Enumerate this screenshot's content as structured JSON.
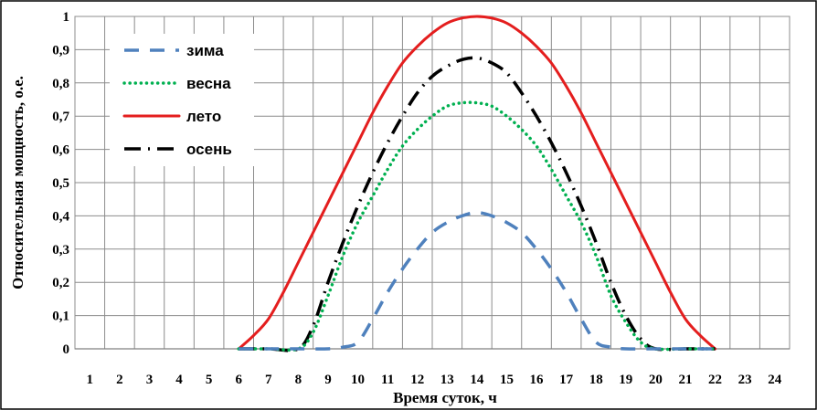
{
  "chart_data": {
    "type": "line",
    "title": "",
    "xlabel": "Время суток, ч",
    "ylabel": "Относительная  мощность, о.е.",
    "xlim": [
      0.5,
      24.5
    ],
    "ylim": [
      0,
      1
    ],
    "x_ticks": [
      "1",
      "2",
      "3",
      "4",
      "5",
      "6",
      "7",
      "8",
      "9",
      "10",
      "11",
      "12",
      "13",
      "14",
      "15",
      "16",
      "17",
      "18",
      "19",
      "20",
      "21",
      "22",
      "23",
      "24"
    ],
    "y_ticks": [
      "0",
      "0,1",
      "0,2",
      "0,3",
      "0,4",
      "0,5",
      "0,6",
      "0,7",
      "0,8",
      "0,9",
      "1"
    ],
    "grid": true,
    "legend_position": "top-left",
    "series": [
      {
        "name": "зима",
        "color": "#4F81BD",
        "style": "dashed",
        "x": [
          6,
          7,
          8,
          9,
          9.5,
          10,
          10.5,
          11,
          11.5,
          12,
          12.5,
          13,
          13.5,
          14,
          14.5,
          15,
          15.5,
          16,
          16.5,
          17,
          17.5,
          18,
          18.5,
          19,
          20,
          21,
          22
        ],
        "y": [
          0,
          0,
          0,
          0,
          0.005,
          0.02,
          0.09,
          0.17,
          0.24,
          0.3,
          0.35,
          0.38,
          0.4,
          0.41,
          0.4,
          0.38,
          0.35,
          0.3,
          0.24,
          0.17,
          0.09,
          0.02,
          0.005,
          0,
          0,
          0,
          0
        ]
      },
      {
        "name": "весна",
        "color": "#00B050",
        "style": "dotted",
        "x": [
          6,
          7,
          8,
          8.5,
          9,
          9.5,
          10,
          10.5,
          11,
          11.5,
          12,
          12.5,
          13,
          13.5,
          14,
          14.5,
          15,
          15.5,
          16,
          16.5,
          17,
          17.5,
          18,
          18.5,
          19,
          19.5,
          20,
          21,
          22
        ],
        "y": [
          0,
          0,
          0,
          0.05,
          0.16,
          0.28,
          0.38,
          0.46,
          0.54,
          0.61,
          0.66,
          0.7,
          0.73,
          0.74,
          0.74,
          0.73,
          0.7,
          0.66,
          0.61,
          0.54,
          0.46,
          0.38,
          0.28,
          0.16,
          0.08,
          0.02,
          0,
          0,
          0
        ]
      },
      {
        "name": "лето",
        "color": "#E41E1E",
        "style": "solid",
        "x": [
          6,
          6.5,
          7,
          7.5,
          8,
          8.5,
          9,
          9.5,
          10,
          10.5,
          11,
          11.5,
          12,
          12.5,
          13,
          13.5,
          14,
          14.5,
          15,
          15.5,
          16,
          16.5,
          17,
          17.5,
          18,
          18.5,
          19,
          19.5,
          20,
          20.5,
          21,
          21.5,
          22
        ],
        "y": [
          0,
          0.04,
          0.09,
          0.17,
          0.26,
          0.35,
          0.44,
          0.53,
          0.62,
          0.71,
          0.79,
          0.86,
          0.91,
          0.95,
          0.98,
          0.995,
          1.0,
          0.995,
          0.98,
          0.95,
          0.91,
          0.86,
          0.79,
          0.71,
          0.62,
          0.53,
          0.44,
          0.35,
          0.26,
          0.17,
          0.09,
          0.04,
          0
        ]
      },
      {
        "name": "осень",
        "color": "#000000",
        "style": "dashdot",
        "x": [
          6,
          7,
          8,
          8.5,
          9,
          9.5,
          10,
          10.5,
          11,
          11.5,
          12,
          12.5,
          13,
          13.5,
          14,
          14.5,
          15,
          15.5,
          16,
          16.5,
          17,
          17.5,
          18,
          18.5,
          19,
          19.5,
          20,
          21,
          22
        ],
        "y": [
          0,
          0,
          0,
          0.07,
          0.2,
          0.32,
          0.43,
          0.53,
          0.62,
          0.7,
          0.77,
          0.82,
          0.85,
          0.87,
          0.875,
          0.86,
          0.83,
          0.77,
          0.7,
          0.62,
          0.53,
          0.43,
          0.32,
          0.2,
          0.1,
          0.03,
          0,
          0,
          0
        ]
      }
    ]
  }
}
